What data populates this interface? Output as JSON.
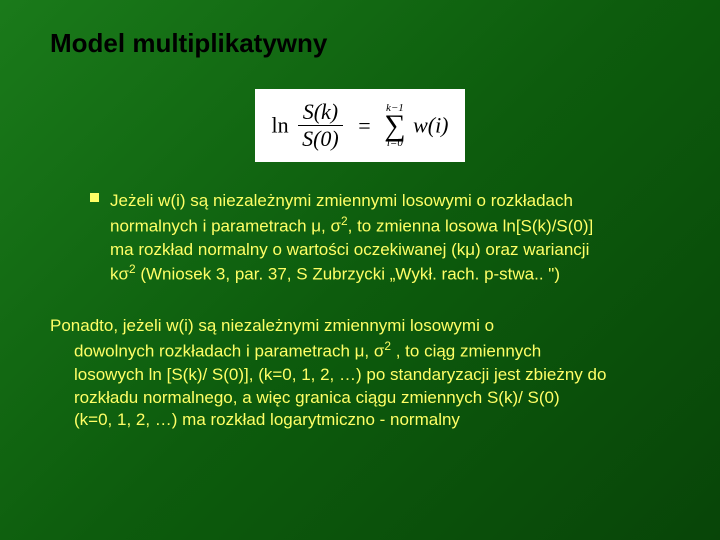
{
  "title": "Model multiplikatywny",
  "formula": {
    "ln": "ln",
    "frac_num": "S(k)",
    "frac_den": "S(0)",
    "eq": "=",
    "sum_top": "k−1",
    "sum_sigma": "∑",
    "sum_bot": "i=0",
    "wi": "w(i)"
  },
  "bullet": {
    "l1": "Jeżeli w(i) są niezależnymi zmiennymi losowymi o rozkładach",
    "l2a": "normalnych i parametrach μ, σ",
    "l2b": ", to zmienna losowa ln[S(k)/S(0)]",
    "l3": "ma rozkład normalny o wartości oczekiwanej (kμ) oraz wariancji",
    "l4a": "kσ",
    "l4b": " (Wniosek 3, par. 37, S Zubrzycki „Wykł.  rach. p-stwa.. \")",
    "sup": "2"
  },
  "para": {
    "p1": "Ponadto, jeżeli w(i) są niezależnymi zmiennymi losowymi o",
    "p2a": "dowolnych rozkładach  i parametrach μ, σ",
    "p2b": " , to ciąg zmiennych",
    "p3": "losowych  ln [S(k)/ S(0)],  (k=0, 1, 2, …) po standaryzacji jest zbieżny do",
    "p4": "rozkładu  normalnego, a więc granica ciągu zmiennych S(k)/ S(0)",
    "p5": "(k=0, 1, 2, …) ma rozkład logarytmiczno - normalny",
    "sup": "2"
  },
  "colors": {
    "title": "#000000",
    "text": "#ffff66",
    "bg_formula": "#ffffff"
  }
}
